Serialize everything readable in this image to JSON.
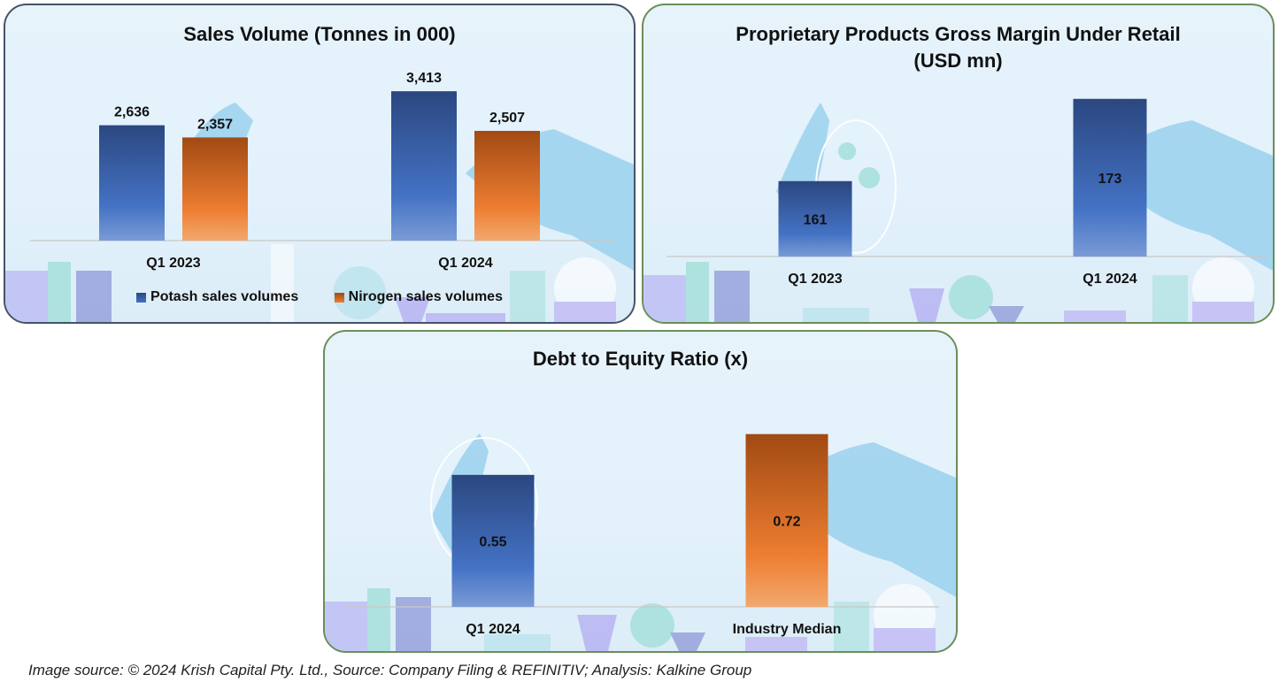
{
  "colors": {
    "potash": "#3f66b5",
    "nitrogen": "#d2691e",
    "panel_bg": "#e4f2fb"
  },
  "chart_data": [
    {
      "type": "bar",
      "title": "Sales Volume (Tonnes in 000)",
      "categories": [
        "Q1 2023",
        "Q1 2024"
      ],
      "series": [
        {
          "name": "Potash sales volumes",
          "values": [
            2636,
            3413
          ],
          "labels": [
            "2,636",
            "3,413"
          ],
          "color": "blue"
        },
        {
          "name": "Nirogen sales volumes",
          "values": [
            2357,
            2507
          ],
          "labels": [
            "2,357",
            "2,507"
          ],
          "color": "orange"
        }
      ],
      "legend": "bottom",
      "ylim": [
        0,
        3800
      ],
      "grid": false
    },
    {
      "type": "bar",
      "title_line1": "Proprietary Products Gross Margin Under Retail",
      "title_line2": "(USD mn)",
      "categories": [
        "Q1 2023",
        "Q1 2024"
      ],
      "series": [
        {
          "name": "Gross Margin",
          "values": [
            161,
            173
          ],
          "labels": [
            "161",
            "173"
          ],
          "color": "blue"
        }
      ],
      "ylim": [
        150,
        174
      ],
      "grid": false
    },
    {
      "type": "bar",
      "title": "Debt to Equity Ratio (x)",
      "categories": [
        "Q1 2024",
        "Industry Median"
      ],
      "series": [
        {
          "name": "Debt to Equity",
          "values": [
            0.55,
            0.72
          ],
          "labels": [
            "0.55",
            "0.72"
          ],
          "colors": [
            "blue",
            "orange"
          ]
        }
      ],
      "ylim": [
        0,
        0.8
      ],
      "grid": false
    }
  ],
  "caption": "Image source: © 2024 Krish Capital Pty. Ltd., Source: Company Filing & REFINITIV; Analysis: Kalkine Group"
}
